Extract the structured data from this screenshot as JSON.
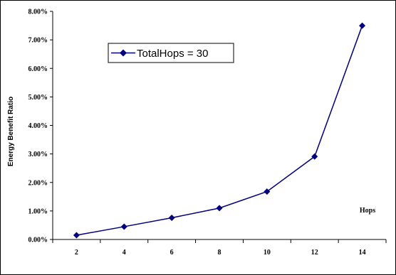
{
  "chart_data": {
    "type": "line",
    "ylabel": "Energy Benefit Ratio",
    "xlabel": "Hops",
    "x": [
      2,
      4,
      6,
      8,
      10,
      12,
      14
    ],
    "series": [
      {
        "name": "TotalHops = 30",
        "values": [
          0.15,
          0.45,
          0.76,
          1.1,
          1.68,
          2.91,
          7.5
        ]
      }
    ],
    "ylim": [
      0,
      8
    ],
    "y_ticks": [
      "0.00%",
      "1.00%",
      "2.00%",
      "3.00%",
      "4.00%",
      "5.00%",
      "6.00%",
      "7.00%",
      "8.00%"
    ],
    "x_ticks": [
      "2",
      "4",
      "6",
      "8",
      "10",
      "12",
      "14"
    ],
    "legend_position": "top-left-inside",
    "grid": false,
    "line_color": "#000080",
    "marker": "diamond"
  }
}
